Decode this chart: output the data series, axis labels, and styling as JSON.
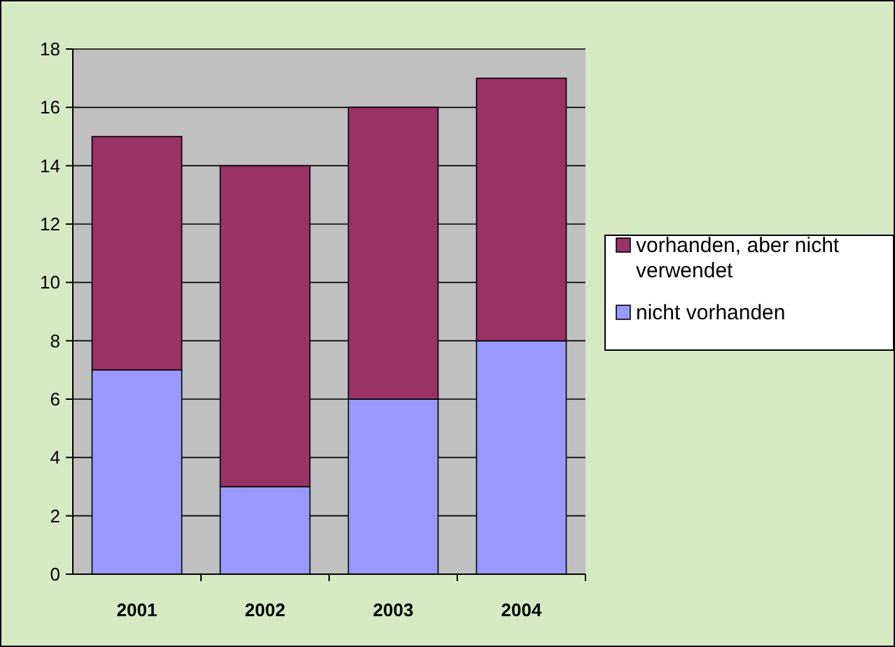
{
  "chart_data": {
    "type": "bar",
    "stacked": true,
    "categories": [
      "2001",
      "2002",
      "2003",
      "2004"
    ],
    "series": [
      {
        "name": "nicht vorhanden",
        "color": "#9999ff",
        "values": [
          7,
          3,
          6,
          8
        ]
      },
      {
        "name": "vorhanden, aber nicht verwendet",
        "color": "#993366",
        "values": [
          8,
          11,
          10,
          9
        ]
      }
    ],
    "ylim": [
      0,
      18
    ],
    "yticks": [
      0,
      2,
      4,
      6,
      8,
      10,
      12,
      14,
      16,
      18
    ],
    "grid": "y",
    "legend": "right"
  }
}
